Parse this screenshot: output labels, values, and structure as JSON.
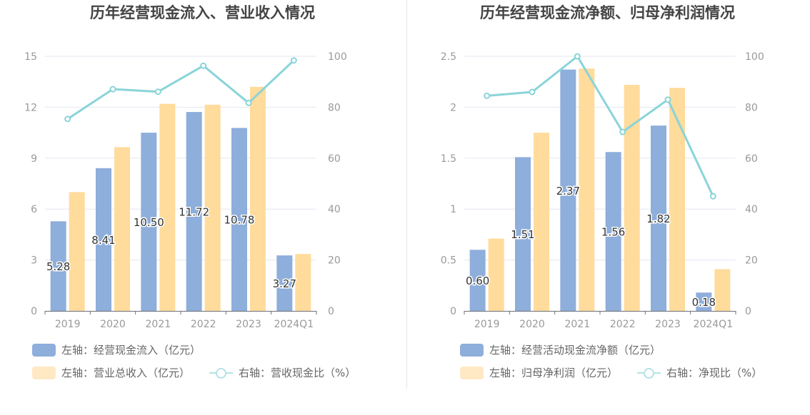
{
  "chart_data": [
    {
      "type": "bar",
      "title": "历年经营现金流入、营业收入情况",
      "categories": [
        "2019",
        "2020",
        "2021",
        "2022",
        "2023",
        "2024Q1"
      ],
      "yLeft": {
        "min": 0,
        "max": 15,
        "ticks": [
          "0",
          "3",
          "6",
          "9",
          "12",
          "15"
        ]
      },
      "yRight": {
        "min": 0,
        "max": 100,
        "ticks": [
          "0",
          "20",
          "40",
          "60",
          "80",
          "100"
        ]
      },
      "series": [
        {
          "name": "左轴：经营现金流入（亿元）",
          "kind": "bar",
          "axis": "left",
          "color": "#8eaedb",
          "values": [
            5.28,
            8.41,
            10.5,
            11.72,
            10.78,
            3.27
          ],
          "labels": [
            "5.28",
            "8.41",
            "10.50",
            "11.72",
            "10.78",
            "3.27"
          ]
        },
        {
          "name": "左轴：营业总收入（亿元）",
          "kind": "bar",
          "axis": "left",
          "color": "#ffdb9c",
          "values": [
            7.0,
            9.65,
            12.2,
            12.15,
            13.2,
            3.35
          ]
        },
        {
          "name": "右轴：营收现金比（%）",
          "kind": "line",
          "axis": "right",
          "color": "#8ad4d9",
          "values": [
            75.4,
            87.1,
            86.1,
            96.3,
            81.7,
            98.4
          ]
        }
      ]
    },
    {
      "type": "bar",
      "title": "历年经营现金流净额、归母净利润情况",
      "categories": [
        "2019",
        "2020",
        "2021",
        "2022",
        "2023",
        "2024Q1"
      ],
      "yLeft": {
        "min": 0,
        "max": 2.5,
        "ticks": [
          "0",
          "0.5",
          "1",
          "1.5",
          "2",
          "2.5"
        ]
      },
      "yRight": {
        "min": 0,
        "max": 100,
        "ticks": [
          "0",
          "20",
          "40",
          "60",
          "80",
          "100"
        ]
      },
      "series": [
        {
          "name": "左轴：经营活动现金流净额（亿元）",
          "kind": "bar",
          "axis": "left",
          "color": "#8eaedb",
          "values": [
            0.6,
            1.51,
            2.37,
            1.56,
            1.82,
            0.18
          ],
          "labels": [
            "0.60",
            "1.51",
            "2.37",
            "1.56",
            "1.82",
            "0.18"
          ]
        },
        {
          "name": "左轴：归母净利润（亿元）",
          "kind": "bar",
          "axis": "left",
          "color": "#ffdb9c",
          "values": [
            0.71,
            1.75,
            2.38,
            2.22,
            2.19,
            0.41
          ]
        },
        {
          "name": "右轴：净现比（%）",
          "kind": "line",
          "axis": "right",
          "color": "#8ad4d9",
          "values": [
            84.5,
            86.0,
            100.0,
            70.3,
            83.0,
            45.0
          ]
        }
      ]
    }
  ]
}
